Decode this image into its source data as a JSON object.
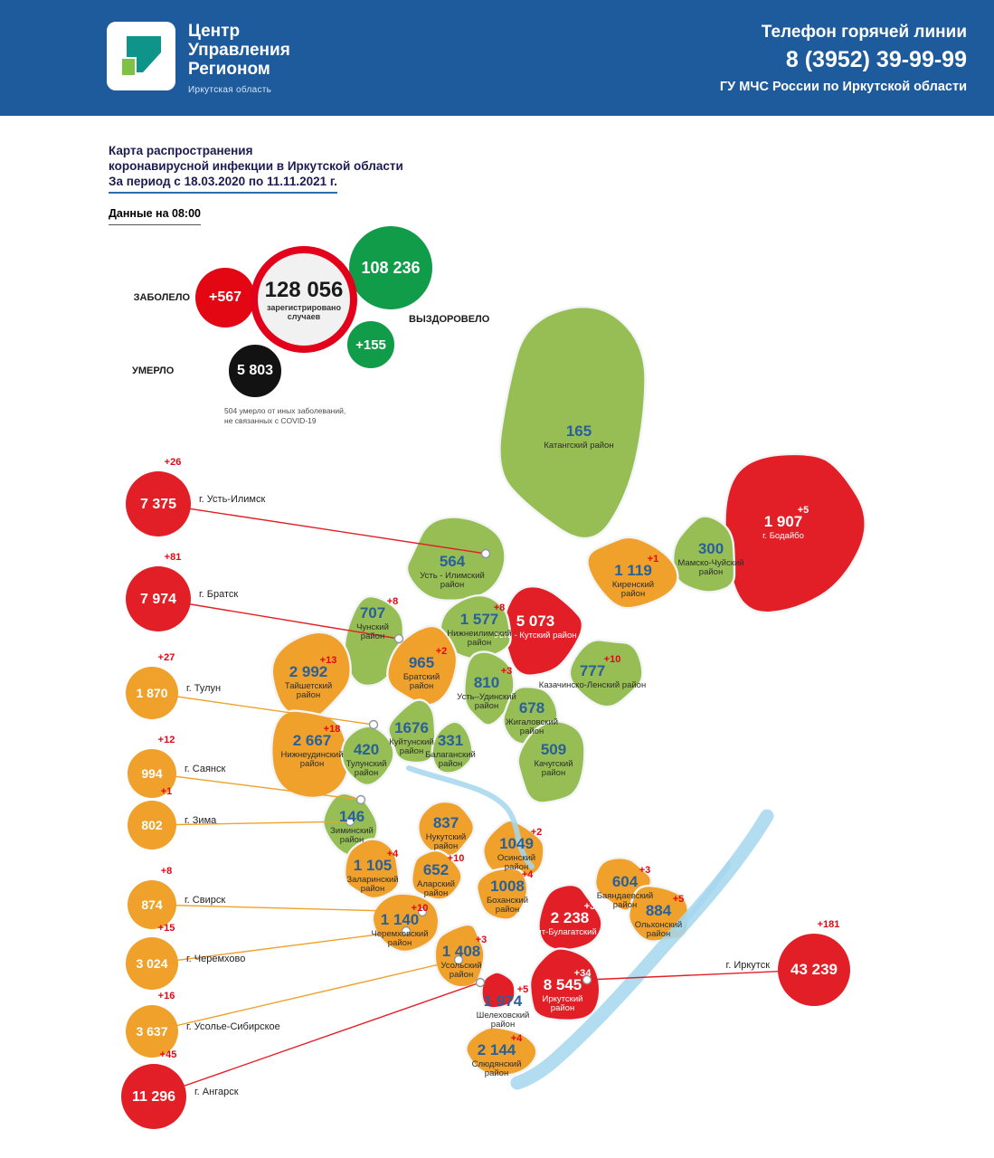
{
  "header": {
    "logo": {
      "title_lines": [
        "Центр",
        "Управления",
        "Регионом"
      ],
      "subtitle": "Иркутская область"
    },
    "hotline": {
      "line1": "Телефон горячей линии",
      "phone": "8 (3952) 39-99-99",
      "line3": "ГУ МЧС России по Иркутской области"
    }
  },
  "title_block": {
    "line1": "Карта распространения",
    "line2": "коронавирусной инфекции в Иркутской области",
    "line3": "За период с 18.03.2020 по 11.11.2021 г.",
    "data_time": "Данные на 08:00"
  },
  "stats": {
    "sick_label": "ЗАБОЛЕЛО",
    "sick_delta": "+567",
    "total_value": "128 056",
    "total_caption_line1": "зарегистрировано",
    "total_caption_line2": "случаев",
    "recovered_value": "108 236",
    "recovered_label": "ВЫЗДОРОВЕЛО",
    "recovered_delta": "+155",
    "died_label": "УМЕРЛО",
    "died_value": "5 803",
    "died_note": "504 умерло от иных заболеваний, не связанных с COVID-19"
  },
  "colors": {
    "header_blue": "#1e5b9d",
    "green": "#96be54",
    "orange": "#f0a12c",
    "red": "#e21f26",
    "value_blue": "#2a6099",
    "delta_red": "#e30613",
    "recovered_green": "#119c49",
    "died_black": "#121212",
    "water": "#a5d7ef"
  },
  "map": {
    "regions": [
      {
        "id": "katangsky",
        "name": "Катангский район",
        "value": "165",
        "delta": "",
        "color": "green"
      },
      {
        "id": "bodaibo",
        "name": "г. Бодайбо",
        "value": "1 907",
        "delta": "+5",
        "color": "red",
        "text": "white"
      },
      {
        "id": "mamsko",
        "name": "Мамско-Чуйский\nрайон",
        "value": "300",
        "delta": "",
        "color": "green"
      },
      {
        "id": "kirensky",
        "name": "Киренский\nрайон",
        "value": "1 119",
        "delta": "+1",
        "color": "orange"
      },
      {
        "id": "ust_ilimsky_r",
        "name": "Усть - Илимский\nрайон",
        "value": "564",
        "delta": "",
        "color": "green"
      },
      {
        "id": "ust_kutsky",
        "name": "Усть - Кутский район",
        "value": "5 073",
        "delta": "",
        "color": "red",
        "text": "white"
      },
      {
        "id": "kazachinsko",
        "name": "Казачинско-Ленский район",
        "value": "777",
        "delta": "+10",
        "color": "green"
      },
      {
        "id": "nizhneilimsky",
        "name": "Нижнеилимский\nрайон",
        "value": "1 577",
        "delta": "+8",
        "color": "green"
      },
      {
        "id": "chunsky",
        "name": "Чунский\nрайон",
        "value": "707",
        "delta": "+8",
        "color": "green"
      },
      {
        "id": "bratsky",
        "name": "Братский\nрайон",
        "value": "965",
        "delta": "+2",
        "color": "orange"
      },
      {
        "id": "taishetsky",
        "name": "Тайшетский\nрайон",
        "value": "2 992",
        "delta": "+13",
        "color": "orange"
      },
      {
        "id": "nizhneudinsky",
        "name": "Нижнеудинский\nрайон",
        "value": "2 667",
        "delta": "+18",
        "color": "orange"
      },
      {
        "id": "ust_udinsky",
        "name": "Усть–Удинский\nрайон",
        "value": "810",
        "delta": "+3",
        "color": "green"
      },
      {
        "id": "zhigalovsky",
        "name": "Жигаловский\nрайон",
        "value": "678",
        "delta": "",
        "color": "green"
      },
      {
        "id": "kachugsky",
        "name": "Качугский\nрайон",
        "value": "509",
        "delta": "",
        "color": "green"
      },
      {
        "id": "tulunsky",
        "name": "Тулунский\nрайон",
        "value": "420",
        "delta": "",
        "color": "green"
      },
      {
        "id": "kuitunsky",
        "name": "Куйтунский\nрайон",
        "value": "1676",
        "delta": "",
        "color": "green"
      },
      {
        "id": "balagansky",
        "name": "Балаганский\nрайон",
        "value": "331",
        "delta": "",
        "color": "green"
      },
      {
        "id": "ziminsky",
        "name": "Зиминский\nрайон",
        "value": "146",
        "delta": "",
        "color": "green"
      },
      {
        "id": "nukutsky",
        "name": "Нукутский\nрайон",
        "value": "837",
        "delta": "",
        "color": "orange"
      },
      {
        "id": "osinsky",
        "name": "Осинский\nрайон",
        "value": "1049",
        "delta": "+2",
        "color": "orange"
      },
      {
        "id": "zalarinsky",
        "name": "Заларинский\nрайон",
        "value": "1 105",
        "delta": "+4",
        "color": "orange"
      },
      {
        "id": "alarsky",
        "name": "Аларский\nрайон",
        "value": "652",
        "delta": "+10",
        "color": "orange"
      },
      {
        "id": "bokhansky",
        "name": "Боханский\nрайон",
        "value": "1008",
        "delta": "+4",
        "color": "orange"
      },
      {
        "id": "bayandaevsky",
        "name": "Баяндаевский\nрайон",
        "value": "604",
        "delta": "+3",
        "color": "orange"
      },
      {
        "id": "olkhonsky",
        "name": "Ольхонский\nрайон",
        "value": "884",
        "delta": "+5",
        "color": "orange"
      },
      {
        "id": "ekhirit",
        "name": "Эхирит-Булагатский район",
        "value": "2 238",
        "delta": "+3",
        "color": "red",
        "text": "white"
      },
      {
        "id": "cheremkhovsky",
        "name": "Черемховский\nрайон",
        "value": "1 140",
        "delta": "+10",
        "color": "orange"
      },
      {
        "id": "usolsky",
        "name": "Усольский\nрайон",
        "value": "1 408",
        "delta": "+3",
        "color": "orange"
      },
      {
        "id": "irkutsky_r",
        "name": "Иркутский\nрайон",
        "value": "8 545",
        "delta": "+34",
        "color": "red",
        "text": "white"
      },
      {
        "id": "shelekhovsky",
        "name": "Шелеховский\nрайон",
        "value": "1 974",
        "delta": "+5",
        "color": "red"
      },
      {
        "id": "slyudyansky",
        "name": "Слюдянский\nрайон",
        "value": "2 144",
        "delta": "+4",
        "color": "orange"
      }
    ],
    "callouts": [
      {
        "id": "ust_ilimsk",
        "label": "г. Усть-Илимск",
        "value": "7 375",
        "delta": "+26",
        "color": "red",
        "side": "right"
      },
      {
        "id": "bratsk",
        "label": "г. Братск",
        "value": "7 974",
        "delta": "+81",
        "color": "red",
        "side": "right"
      },
      {
        "id": "tulun",
        "label": "г. Тулун",
        "value": "1 870",
        "delta": "+27",
        "color": "orange",
        "side": "right"
      },
      {
        "id": "sayansk",
        "label": "г. Саянск",
        "value": "994",
        "delta": "+12",
        "color": "orange",
        "side": "right"
      },
      {
        "id": "zima",
        "label": "г. Зима",
        "value": "802",
        "delta": "+1",
        "color": "orange",
        "side": "right"
      },
      {
        "id": "svirsk",
        "label": "г. Свирск",
        "value": "874",
        "delta": "+8",
        "color": "orange",
        "side": "right"
      },
      {
        "id": "cheremkhovo",
        "label": "г. Черемхово",
        "value": "3 024",
        "delta": "+15",
        "color": "orange",
        "side": "right"
      },
      {
        "id": "usolye",
        "label": "г. Усолье-Сибирское",
        "value": "3 637",
        "delta": "+16",
        "color": "orange",
        "side": "right"
      },
      {
        "id": "angarsk",
        "label": "г. Ангарск",
        "value": "11 296",
        "delta": "+45",
        "color": "red",
        "side": "right"
      },
      {
        "id": "irkutsk",
        "label": "г. Иркутск",
        "value": "43 239",
        "delta": "+181",
        "color": "red",
        "side": "left"
      }
    ]
  }
}
